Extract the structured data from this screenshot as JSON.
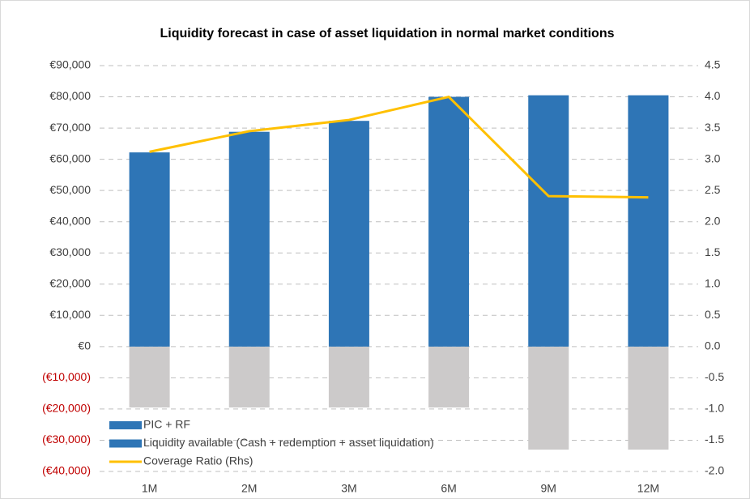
{
  "chart_data": {
    "type": "bar_line",
    "title": "Liquidity forecast in case of asset liquidation in normal market conditions",
    "categories": [
      "1M",
      "2M",
      "3M",
      "6M",
      "9M",
      "12M"
    ],
    "series": [
      {
        "name": "PIC + RF",
        "type": "bar",
        "color": "#cccaca",
        "legend_color": "#2e75b6",
        "values": [
          -19500,
          -19500,
          -19500,
          -19500,
          -33000,
          -33000
        ]
      },
      {
        "name": "Liquidity available (Cash + redemption + asset liquidation)",
        "type": "bar",
        "color": "#2e75b6",
        "legend_color": "#2e75b6",
        "values": [
          62200,
          68800,
          72300,
          80000,
          80500,
          80500
        ]
      },
      {
        "name": "Coverage Ratio (Rhs)",
        "type": "line",
        "axis": "y2",
        "color": "#ffc000",
        "legend_color": "#ffc000",
        "values": [
          3.12,
          3.45,
          3.63,
          4.0,
          2.41,
          2.39
        ]
      }
    ],
    "ylim": [
      -40000,
      90000
    ],
    "yticks": [
      {
        "value": 90000,
        "label": "€90,000"
      },
      {
        "value": 80000,
        "label": "€80,000"
      },
      {
        "value": 70000,
        "label": "€70,000"
      },
      {
        "value": 60000,
        "label": "€60,000"
      },
      {
        "value": 50000,
        "label": "€50,000"
      },
      {
        "value": 40000,
        "label": "€40,000"
      },
      {
        "value": 30000,
        "label": "€30,000"
      },
      {
        "value": 20000,
        "label": "€20,000"
      },
      {
        "value": 10000,
        "label": "€10,000"
      },
      {
        "value": 0,
        "label": "€0"
      },
      {
        "value": -10000,
        "label": "(€10,000)"
      },
      {
        "value": -20000,
        "label": "(€20,000)"
      },
      {
        "value": -30000,
        "label": "(€30,000)"
      },
      {
        "value": -40000,
        "label": "(€40,000)"
      }
    ],
    "negative_label_color": "#c00000",
    "y2lim": [
      -2.0,
      4.5
    ],
    "y2ticks": [
      {
        "value": 4.5,
        "label": "4.5"
      },
      {
        "value": 4.0,
        "label": "4.0"
      },
      {
        "value": 3.5,
        "label": "3.5"
      },
      {
        "value": 3.0,
        "label": "3.0"
      },
      {
        "value": 2.5,
        "label": "2.5"
      },
      {
        "value": 2.0,
        "label": "2.0"
      },
      {
        "value": 1.5,
        "label": "1.5"
      },
      {
        "value": 1.0,
        "label": "1.0"
      },
      {
        "value": 0.5,
        "label": "0.5"
      },
      {
        "value": 0.0,
        "label": "0.0"
      },
      {
        "value": -0.5,
        "label": "-0.5"
      },
      {
        "value": -1.0,
        "label": "-1.0"
      },
      {
        "value": -1.5,
        "label": "-1.5"
      },
      {
        "value": -2.0,
        "label": "-2.0"
      }
    ],
    "grid": true,
    "legend": "bottom-left"
  }
}
